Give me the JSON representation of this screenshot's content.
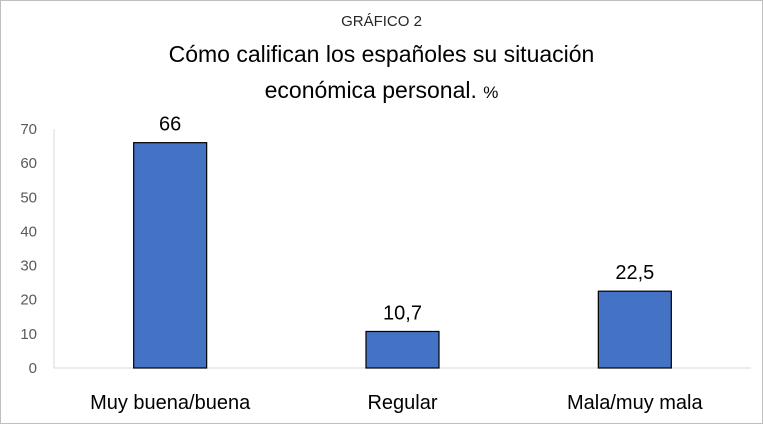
{
  "chart_data": {
    "type": "bar",
    "supertitle": "GRÁFICO 2",
    "title_line1": "Cómo califican los españoles su situación",
    "title_line2": "económica personal.",
    "title_unit": "%",
    "categories": [
      "Muy buena/buena",
      "Regular",
      "Mala/muy mala"
    ],
    "values": [
      66,
      10.7,
      22.5
    ],
    "data_labels": [
      "66",
      "10,7",
      "22,5"
    ],
    "y_ticks": [
      0,
      10,
      20,
      30,
      40,
      50,
      60,
      70
    ],
    "ylim": [
      0,
      70
    ],
    "grid": false,
    "legend": "none",
    "xlabel": "",
    "ylabel": "",
    "bar_color": "#4472c4",
    "bar_outline": "#000000"
  }
}
